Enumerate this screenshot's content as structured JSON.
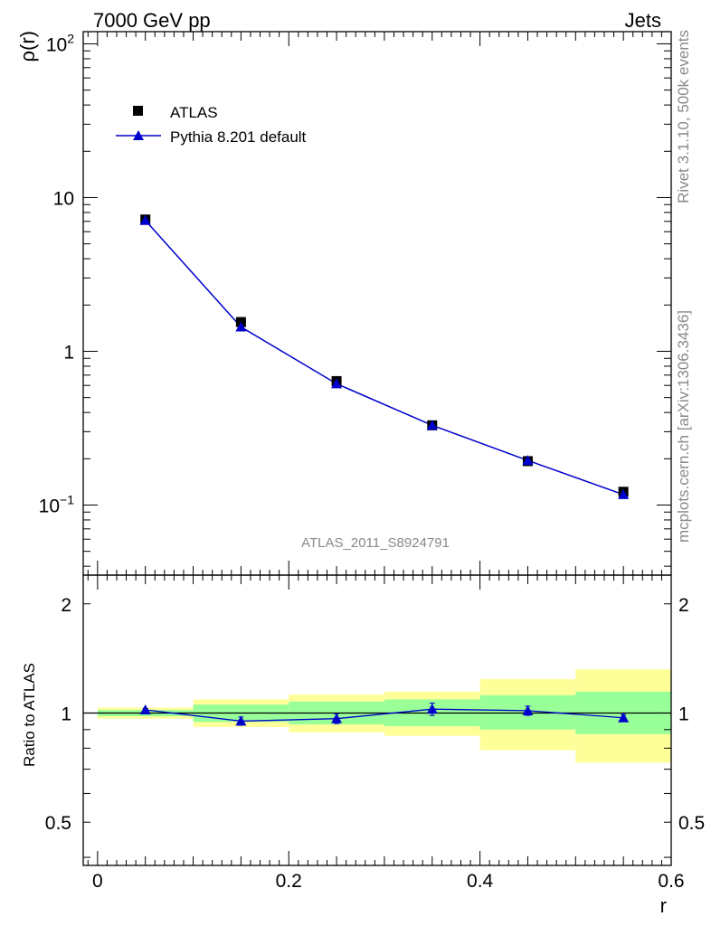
{
  "header": {
    "left": "7000 GeV pp",
    "right": "Jets"
  },
  "side_text": {
    "rivet": "Rivet 3.1.10,  500k events",
    "mcplots": "mcplots.cern.ch [arXiv:1306.3436]"
  },
  "analysis_id": "ATLAS_2011_S8924791",
  "colors": {
    "data": "#000000",
    "mc": "#0000cc",
    "band_inner": "#99ff99",
    "band_outer": "#ffff99"
  },
  "chart_data": [
    {
      "type": "scatter",
      "ylabel": "ρ(r)",
      "yscale": "log",
      "xlim": [
        -0.015,
        0.6
      ],
      "ylim": [
        0.035,
        120
      ],
      "y_ticks": [
        {
          "v": 0.1,
          "base": "10",
          "exp": "−1"
        },
        {
          "v": 1,
          "base": "1",
          "exp": ""
        },
        {
          "v": 10,
          "base": "10",
          "exp": ""
        },
        {
          "v": 100,
          "base": "10",
          "exp": "2"
        }
      ],
      "legend": {
        "placement": "top-left"
      },
      "x": [
        0.05,
        0.15,
        0.25,
        0.35,
        0.45,
        0.55
      ],
      "series": [
        {
          "name": "ATLAS",
          "marker": "square",
          "values": [
            7.2,
            1.55,
            0.64,
            0.33,
            0.193,
            0.122
          ]
        },
        {
          "name": "Pythia 8.201 default",
          "marker": "triangle",
          "line": true,
          "values": [
            7.1,
            1.44,
            0.615,
            0.33,
            0.195,
            0.117
          ]
        }
      ]
    },
    {
      "type": "scatter",
      "xlabel": "r",
      "ylabel": "Ratio to ATLAS",
      "yscale": "log",
      "xlim": [
        -0.015,
        0.6
      ],
      "ylim": [
        0.38,
        2.4
      ],
      "x_ticks": [
        "0",
        "0.2",
        "0.4",
        "0.6"
      ],
      "y_ticks": [
        "0.5",
        "1",
        "2"
      ],
      "bands": {
        "x_edges": [
          0,
          0.1,
          0.2,
          0.3,
          0.4,
          0.5,
          0.6
        ],
        "inner": [
          [
            0.98,
            1.02
          ],
          [
            0.945,
            1.055
          ],
          [
            0.93,
            1.075
          ],
          [
            0.92,
            1.09
          ],
          [
            0.9,
            1.12
          ],
          [
            0.875,
            1.145
          ]
        ],
        "outer": [
          [
            0.965,
            1.035
          ],
          [
            0.915,
            1.09
          ],
          [
            0.885,
            1.125
          ],
          [
            0.865,
            1.145
          ],
          [
            0.79,
            1.24
          ],
          [
            0.73,
            1.32
          ]
        ]
      },
      "series": [
        {
          "name": "Pythia 8.201 default",
          "values": [
            1.02,
            0.95,
            0.965,
            1.025,
            1.015,
            0.97
          ],
          "errors": [
            0.01,
            0.025,
            0.03,
            0.04,
            0.03,
            0.02
          ]
        }
      ]
    }
  ]
}
